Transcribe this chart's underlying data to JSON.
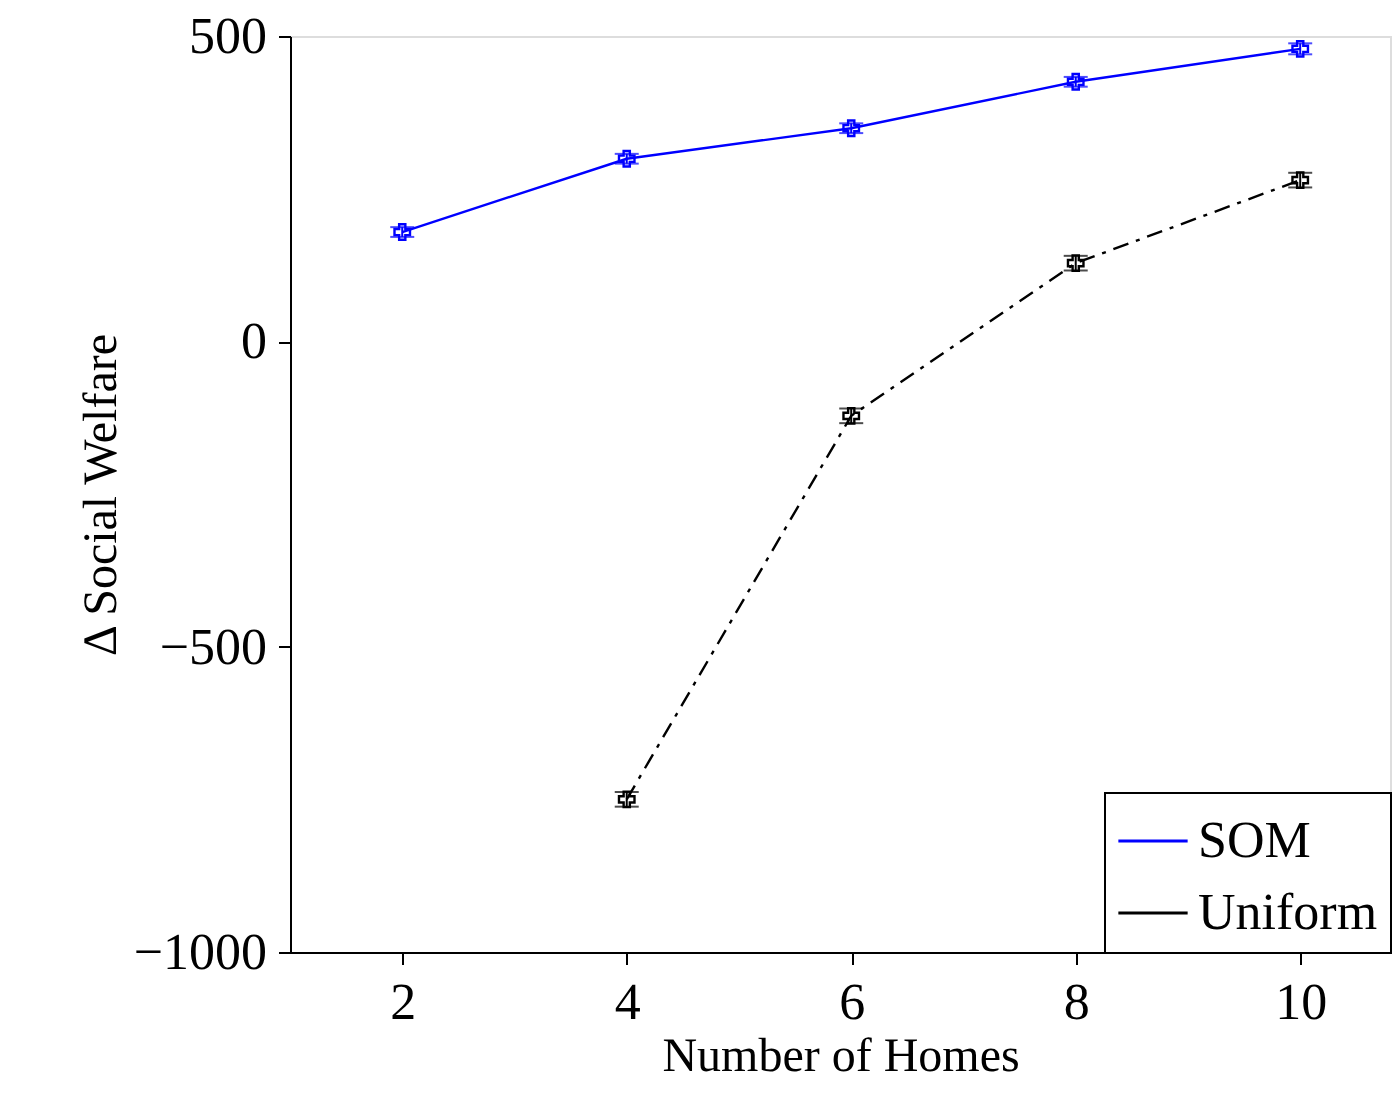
{
  "chart_data": {
    "type": "line",
    "xlabel": "Number of Homes",
    "ylabel": "Δ Social Welfare",
    "x": [
      2,
      4,
      6,
      8,
      10
    ],
    "series": [
      {
        "name": "SOM",
        "color": "#0000ff",
        "values": [
          179,
          299,
          349,
          425,
          479
        ],
        "errors": [
          8,
          8,
          8,
          8,
          9
        ],
        "marker": "cross",
        "line_style": "solid"
      },
      {
        "name": "Uniform",
        "color": "#000000",
        "values": [
          null,
          -750,
          -122,
          128,
          264
        ],
        "errors": [
          null,
          12,
          12,
          12,
          12
        ],
        "marker": "cross",
        "line_style": "dashed"
      }
    ],
    "xlim": [
      1,
      10.8
    ],
    "xticks": [
      2,
      4,
      6,
      8,
      10
    ],
    "ylim": [
      -1000,
      500
    ],
    "yticks": [
      -1000,
      -500,
      0,
      500
    ],
    "grid": false,
    "legend": "bottom right"
  }
}
